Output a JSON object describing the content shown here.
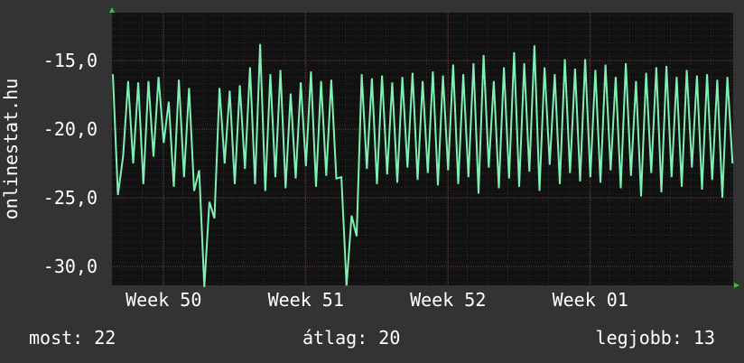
{
  "colors": {
    "background": "#333333",
    "plot_background": "#111111",
    "grid_minor": "#2c2c2c",
    "grid_major": "#5a4646",
    "line": "#7ef0b4",
    "axis_arrow": "#22cc22",
    "text": "#ffffff"
  },
  "chart_data": {
    "type": "line",
    "ylabel": "onlinestat.hu",
    "yticks": [
      -15,
      -20,
      -25,
      -30
    ],
    "ytick_labels": [
      "-15,0",
      "-20,0",
      "-25,0",
      "-30,0"
    ],
    "xticks": [
      {
        "label": "Week 50",
        "pos": 2.5
      },
      {
        "label": "Week 51",
        "pos": 9.5
      },
      {
        "label": "Week 52",
        "pos": 16.5
      },
      {
        "label": "Week 01",
        "pos": 23.5
      }
    ],
    "xlim": [
      0,
      30.5
    ],
    "ylim": [
      -31.5,
      -11.5
    ],
    "grid": true,
    "series": [
      {
        "values": [
          [
            0.0,
            -16
          ],
          [
            0.25,
            -24.8
          ],
          [
            0.5,
            -22
          ],
          [
            0.75,
            -16.5
          ],
          [
            1.0,
            -22.5
          ],
          [
            1.25,
            -16.6
          ],
          [
            1.5,
            -24
          ],
          [
            1.75,
            -16.5
          ],
          [
            2.0,
            -22
          ],
          [
            2.25,
            -16.2
          ],
          [
            2.5,
            -21
          ],
          [
            2.75,
            -18
          ],
          [
            3.0,
            -24.2
          ],
          [
            3.25,
            -16.4
          ],
          [
            3.5,
            -23.5
          ],
          [
            3.75,
            -17
          ],
          [
            4.0,
            -24.5
          ],
          [
            4.25,
            -23
          ],
          [
            4.5,
            -31.5
          ],
          [
            4.75,
            -25.3
          ],
          [
            5.0,
            -26.5
          ],
          [
            5.25,
            -17
          ],
          [
            5.5,
            -22.5
          ],
          [
            5.75,
            -17.2
          ],
          [
            6.0,
            -24
          ],
          [
            6.25,
            -16.8
          ],
          [
            6.5,
            -22.9
          ],
          [
            6.75,
            -15.5
          ],
          [
            7.0,
            -24
          ],
          [
            7.25,
            -13.8
          ],
          [
            7.5,
            -24.5
          ],
          [
            7.75,
            -16
          ],
          [
            8.0,
            -23.5
          ],
          [
            8.25,
            -15.7
          ],
          [
            8.5,
            -24.3
          ],
          [
            8.75,
            -17.4
          ],
          [
            9.0,
            -23.6
          ],
          [
            9.25,
            -16.6
          ],
          [
            9.5,
            -22.7
          ],
          [
            9.75,
            -15.8
          ],
          [
            10.0,
            -24.2
          ],
          [
            10.25,
            -16.5
          ],
          [
            10.5,
            -23.4
          ],
          [
            10.75,
            -16.4
          ],
          [
            11.0,
            -23.6
          ],
          [
            11.25,
            -23.5
          ],
          [
            11.5,
            -31.4
          ],
          [
            11.75,
            -26.3
          ],
          [
            12.0,
            -27.8
          ],
          [
            12.25,
            -16
          ],
          [
            12.5,
            -22.9
          ],
          [
            12.75,
            -16.3
          ],
          [
            13.0,
            -24
          ],
          [
            13.25,
            -16.1
          ],
          [
            13.5,
            -23.3
          ],
          [
            13.75,
            -16.6
          ],
          [
            14.0,
            -23.9
          ],
          [
            14.25,
            -16.2
          ],
          [
            14.5,
            -22.8
          ],
          [
            14.75,
            -15.9
          ],
          [
            15.0,
            -23.7
          ],
          [
            15.25,
            -16.5
          ],
          [
            15.5,
            -23.2
          ],
          [
            15.75,
            -15.8
          ],
          [
            16.0,
            -24.1
          ],
          [
            16.25,
            -16.1
          ],
          [
            16.5,
            -23
          ],
          [
            16.75,
            -15.3
          ],
          [
            17.0,
            -24
          ],
          [
            17.25,
            -16
          ],
          [
            17.5,
            -23.5
          ],
          [
            17.75,
            -15.2
          ],
          [
            18.0,
            -24.7
          ],
          [
            18.25,
            -14.6
          ],
          [
            18.5,
            -22.8
          ],
          [
            18.75,
            -16.5
          ],
          [
            19.0,
            -24.3
          ],
          [
            19.25,
            -15.5
          ],
          [
            19.5,
            -23.6
          ],
          [
            19.75,
            -14.4
          ],
          [
            20.0,
            -24.2
          ],
          [
            20.25,
            -15.2
          ],
          [
            20.5,
            -23.1
          ],
          [
            20.75,
            -13.9
          ],
          [
            21.0,
            -24.5
          ],
          [
            21.25,
            -15.5
          ],
          [
            21.5,
            -22.6
          ],
          [
            21.75,
            -16
          ],
          [
            22.0,
            -24
          ],
          [
            22.25,
            -14.9
          ],
          [
            22.5,
            -23.2
          ],
          [
            22.75,
            -15.6
          ],
          [
            23.0,
            -23.8
          ],
          [
            23.25,
            -14.9
          ],
          [
            23.5,
            -23.5
          ],
          [
            23.75,
            -15.7
          ],
          [
            24.0,
            -23.9
          ],
          [
            24.25,
            -15.3
          ],
          [
            24.5,
            -23
          ],
          [
            24.75,
            -16.2
          ],
          [
            25.0,
            -24.3
          ],
          [
            25.25,
            -15.2
          ],
          [
            25.5,
            -23.4
          ],
          [
            25.75,
            -16.5
          ],
          [
            26.0,
            -24.9
          ],
          [
            26.25,
            -15.9
          ],
          [
            26.5,
            -23.2
          ],
          [
            26.75,
            -15.5
          ],
          [
            27.0,
            -24.6
          ],
          [
            27.25,
            -15.4
          ],
          [
            27.5,
            -23.5
          ],
          [
            27.75,
            -16.2
          ],
          [
            28.0,
            -24.2
          ],
          [
            28.25,
            -15.7
          ],
          [
            28.5,
            -22.8
          ],
          [
            28.75,
            -16.1
          ],
          [
            29.0,
            -24.4
          ],
          [
            29.25,
            -16
          ],
          [
            29.5,
            -23.7
          ],
          [
            29.75,
            -16.4
          ],
          [
            30.0,
            -25
          ],
          [
            30.25,
            -16.2
          ],
          [
            30.5,
            -22.5
          ]
        ]
      }
    ]
  },
  "stats": {
    "now": "most: 22",
    "avg": "átlag: 20",
    "best": "legjobb: 13"
  }
}
